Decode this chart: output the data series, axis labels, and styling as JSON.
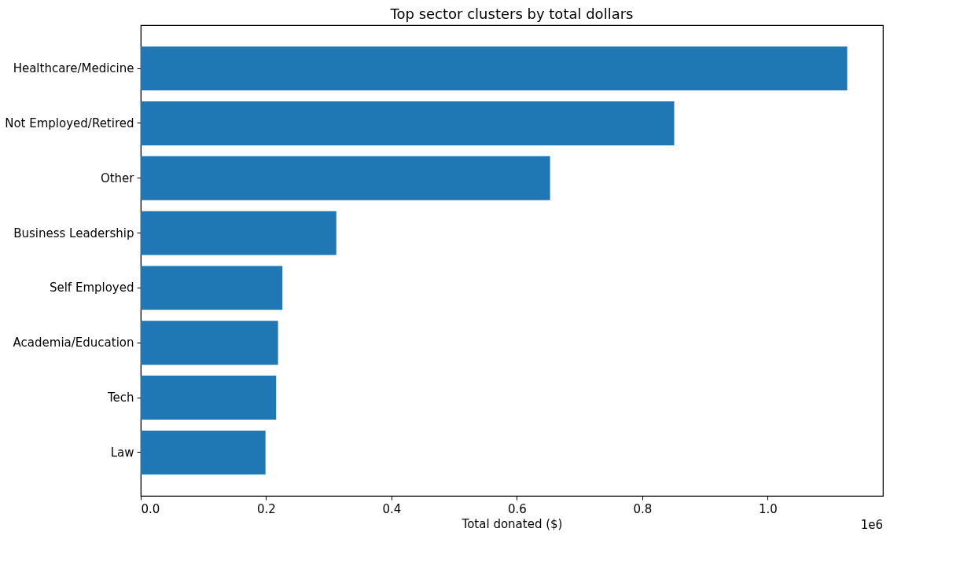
{
  "chart_data": {
    "type": "bar",
    "orientation": "horizontal",
    "title": "Top sector clusters by total dollars",
    "xlabel": "Total donated ($)",
    "categories": [
      "Healthcare/Medicine",
      "Not Employed/Retired",
      "Other",
      "Business Leadership",
      "Self Employed",
      "Academia/Education",
      "Tech",
      "Law"
    ],
    "values": [
      1.127,
      0.851,
      0.653,
      0.312,
      0.226,
      0.219,
      0.216,
      0.199
    ],
    "color": "#1f77b4",
    "xlim": [
      0,
      1.184
    ],
    "xticks": [
      {
        "value": 0,
        "label": "0.0"
      },
      0.2,
      0.4,
      0.6,
      0.8,
      {
        "value": 1,
        "label": "1.0"
      }
    ],
    "annotations": [
      "1e6"
    ],
    "grid": false
  }
}
